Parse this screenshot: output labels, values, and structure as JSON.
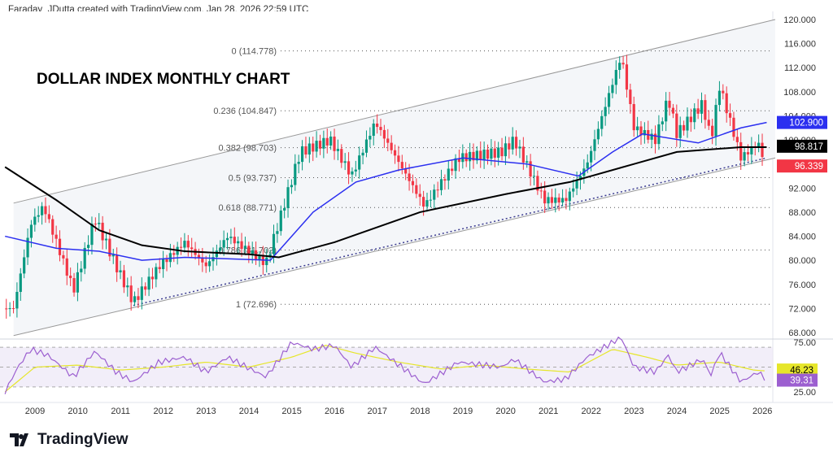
{
  "header": "Faraday_JDutta created with TradingView.com, Jan 28, 2026 22:59 UTC",
  "brand": "TradingView",
  "chart_data": {
    "type": "candlestick",
    "title": "DOLLAR INDEX MONTHLY CHART",
    "y_ticks": [
      "120.000",
      "116.000",
      "112.000",
      "108.000",
      "104.000",
      "100.000",
      "92.000",
      "88.000",
      "84.000",
      "80.000",
      "76.000",
      "72.000",
      "68.000"
    ],
    "y_tick_values": [
      120,
      116,
      112,
      108,
      104,
      100,
      92,
      88,
      84,
      80,
      76,
      72,
      68
    ],
    "ylim": [
      67.5,
      121.5
    ],
    "x_ticks": [
      "2009",
      "2010",
      "2011",
      "2012",
      "2013",
      "2014",
      "2015",
      "2016",
      "2017",
      "2018",
      "2019",
      "2020",
      "2021",
      "2022",
      "2023",
      "2024",
      "2025",
      "2026"
    ],
    "price_path": [
      [
        2008.5,
        72
      ],
      [
        2008.9,
        86
      ],
      [
        2009.2,
        89
      ],
      [
        2009.9,
        75
      ],
      [
        2010.4,
        87
      ],
      [
        2010.9,
        79
      ],
      [
        2011.3,
        73
      ],
      [
        2011.9,
        79
      ],
      [
        2012.5,
        83
      ],
      [
        2013.0,
        79
      ],
      [
        2013.5,
        84
      ],
      [
        2014.4,
        79.5
      ],
      [
        2015.2,
        98
      ],
      [
        2015.9,
        100
      ],
      [
        2016.4,
        94
      ],
      [
        2016.95,
        103
      ],
      [
        2018.1,
        89
      ],
      [
        2018.9,
        97
      ],
      [
        2019.9,
        98
      ],
      [
        2020.2,
        100
      ],
      [
        2020.9,
        90
      ],
      [
        2021.4,
        90
      ],
      [
        2021.9,
        96
      ],
      [
        2022.7,
        114
      ],
      [
        2023.0,
        102
      ],
      [
        2023.5,
        100
      ],
      [
        2023.8,
        107
      ],
      [
        2024.0,
        101
      ],
      [
        2024.6,
        106
      ],
      [
        2024.8,
        100
      ],
      [
        2025.0,
        109
      ],
      [
        2025.5,
        97
      ],
      [
        2025.9,
        99.5
      ],
      [
        2026.05,
        96.3
      ]
    ],
    "ma_fast": {
      "color": "#2b2ff0",
      "label": "102.900",
      "points": [
        [
          2008.3,
          84
        ],
        [
          2009.5,
          82
        ],
        [
          2010.5,
          81.5
        ],
        [
          2011.5,
          80
        ],
        [
          2012.5,
          80.5
        ],
        [
          2014.5,
          80
        ],
        [
          2015.5,
          88
        ],
        [
          2016.5,
          93
        ],
        [
          2017.5,
          95
        ],
        [
          2019,
          97
        ],
        [
          2020.5,
          96
        ],
        [
          2021.7,
          94
        ],
        [
          2022.5,
          98
        ],
        [
          2023.2,
          101
        ],
        [
          2024.5,
          99.5
        ],
        [
          2025.5,
          102
        ],
        [
          2026.1,
          102.9
        ]
      ]
    },
    "ma_slow": {
      "color": "#000000",
      "label": "98.817",
      "points": [
        [
          2008.3,
          95.5
        ],
        [
          2009.5,
          90
        ],
        [
          2010.5,
          85
        ],
        [
          2011.5,
          82.5
        ],
        [
          2012.5,
          81.5
        ],
        [
          2014,
          81
        ],
        [
          2014.7,
          80.5
        ],
        [
          2016,
          83
        ],
        [
          2018,
          88
        ],
        [
          2020,
          91
        ],
        [
          2021.5,
          93
        ],
        [
          2023,
          96
        ],
        [
          2024,
          98
        ],
        [
          2025.5,
          98.8
        ],
        [
          2026.1,
          98.8
        ]
      ]
    },
    "last_price": {
      "label": "96.339",
      "color": "#f23645",
      "value": 96.339
    },
    "fib_levels": [
      {
        "label": "0 (114.778)",
        "value": 114.778
      },
      {
        "label": "0.236 (104.847)",
        "value": 104.847
      },
      {
        "label": "0.382 (98.703)",
        "value": 98.703
      },
      {
        "label": "0.5 (93.737)",
        "value": 93.737
      },
      {
        "label": "0.618 (88.771)",
        "value": 88.771
      },
      {
        "label": "0.786 (81.702)",
        "value": 81.702
      },
      {
        "label": "1 (72.696)",
        "value": 72.696
      }
    ],
    "channel": {
      "upper": [
        [
          2008.5,
          89.5
        ],
        [
          2026.3,
          120
        ]
      ],
      "lower": [
        [
          2008.5,
          67.5
        ],
        [
          2026.3,
          97
        ]
      ],
      "trend": [
        [
          2011.3,
          72.5
        ],
        [
          2026.1,
          97
        ]
      ]
    },
    "rsi": {
      "ticks": [
        "75.00",
        "25.00"
      ],
      "tick_values": [
        75,
        25
      ],
      "rsi_label": "39.31",
      "ma_label": "46.23",
      "rsi_color": "#9c5fd0",
      "ma_color": "#e6e62a",
      "rsi_path": [
        [
          2008.3,
          25
        ],
        [
          2008.6,
          50
        ],
        [
          2008.9,
          68
        ],
        [
          2009.3,
          62
        ],
        [
          2009.9,
          40
        ],
        [
          2010.4,
          66
        ],
        [
          2010.9,
          45
        ],
        [
          2011.3,
          35
        ],
        [
          2011.9,
          55
        ],
        [
          2012.5,
          60
        ],
        [
          2013,
          45
        ],
        [
          2013.5,
          60
        ],
        [
          2014.4,
          40
        ],
        [
          2015.0,
          75
        ],
        [
          2015.5,
          68
        ],
        [
          2016,
          72
        ],
        [
          2016.4,
          50
        ],
        [
          2016.95,
          70
        ],
        [
          2018.1,
          33
        ],
        [
          2018.9,
          55
        ],
        [
          2019.9,
          50
        ],
        [
          2020.2,
          58
        ],
        [
          2020.9,
          35
        ],
        [
          2021.4,
          38
        ],
        [
          2021.9,
          60
        ],
        [
          2022.7,
          80
        ],
        [
          2023.0,
          50
        ],
        [
          2023.5,
          45
        ],
        [
          2023.8,
          62
        ],
        [
          2024,
          45
        ],
        [
          2024.6,
          58
        ],
        [
          2024.8,
          42
        ],
        [
          2025.0,
          65
        ],
        [
          2025.5,
          35
        ],
        [
          2025.9,
          45
        ],
        [
          2026.05,
          39.3
        ]
      ],
      "ma_path": [
        [
          2008.3,
          25
        ],
        [
          2009.0,
          50
        ],
        [
          2010,
          52
        ],
        [
          2011,
          47
        ],
        [
          2012,
          50
        ],
        [
          2013,
          55
        ],
        [
          2014,
          50
        ],
        [
          2015,
          60
        ],
        [
          2015.8,
          72
        ],
        [
          2016.5,
          64
        ],
        [
          2017.5,
          55
        ],
        [
          2018.5,
          48
        ],
        [
          2019.5,
          52
        ],
        [
          2020.5,
          48
        ],
        [
          2021.5,
          45
        ],
        [
          2022.5,
          68
        ],
        [
          2023.3,
          60
        ],
        [
          2024,
          52
        ],
        [
          2025,
          55
        ],
        [
          2025.8,
          47
        ],
        [
          2026.05,
          46.2
        ]
      ]
    }
  }
}
